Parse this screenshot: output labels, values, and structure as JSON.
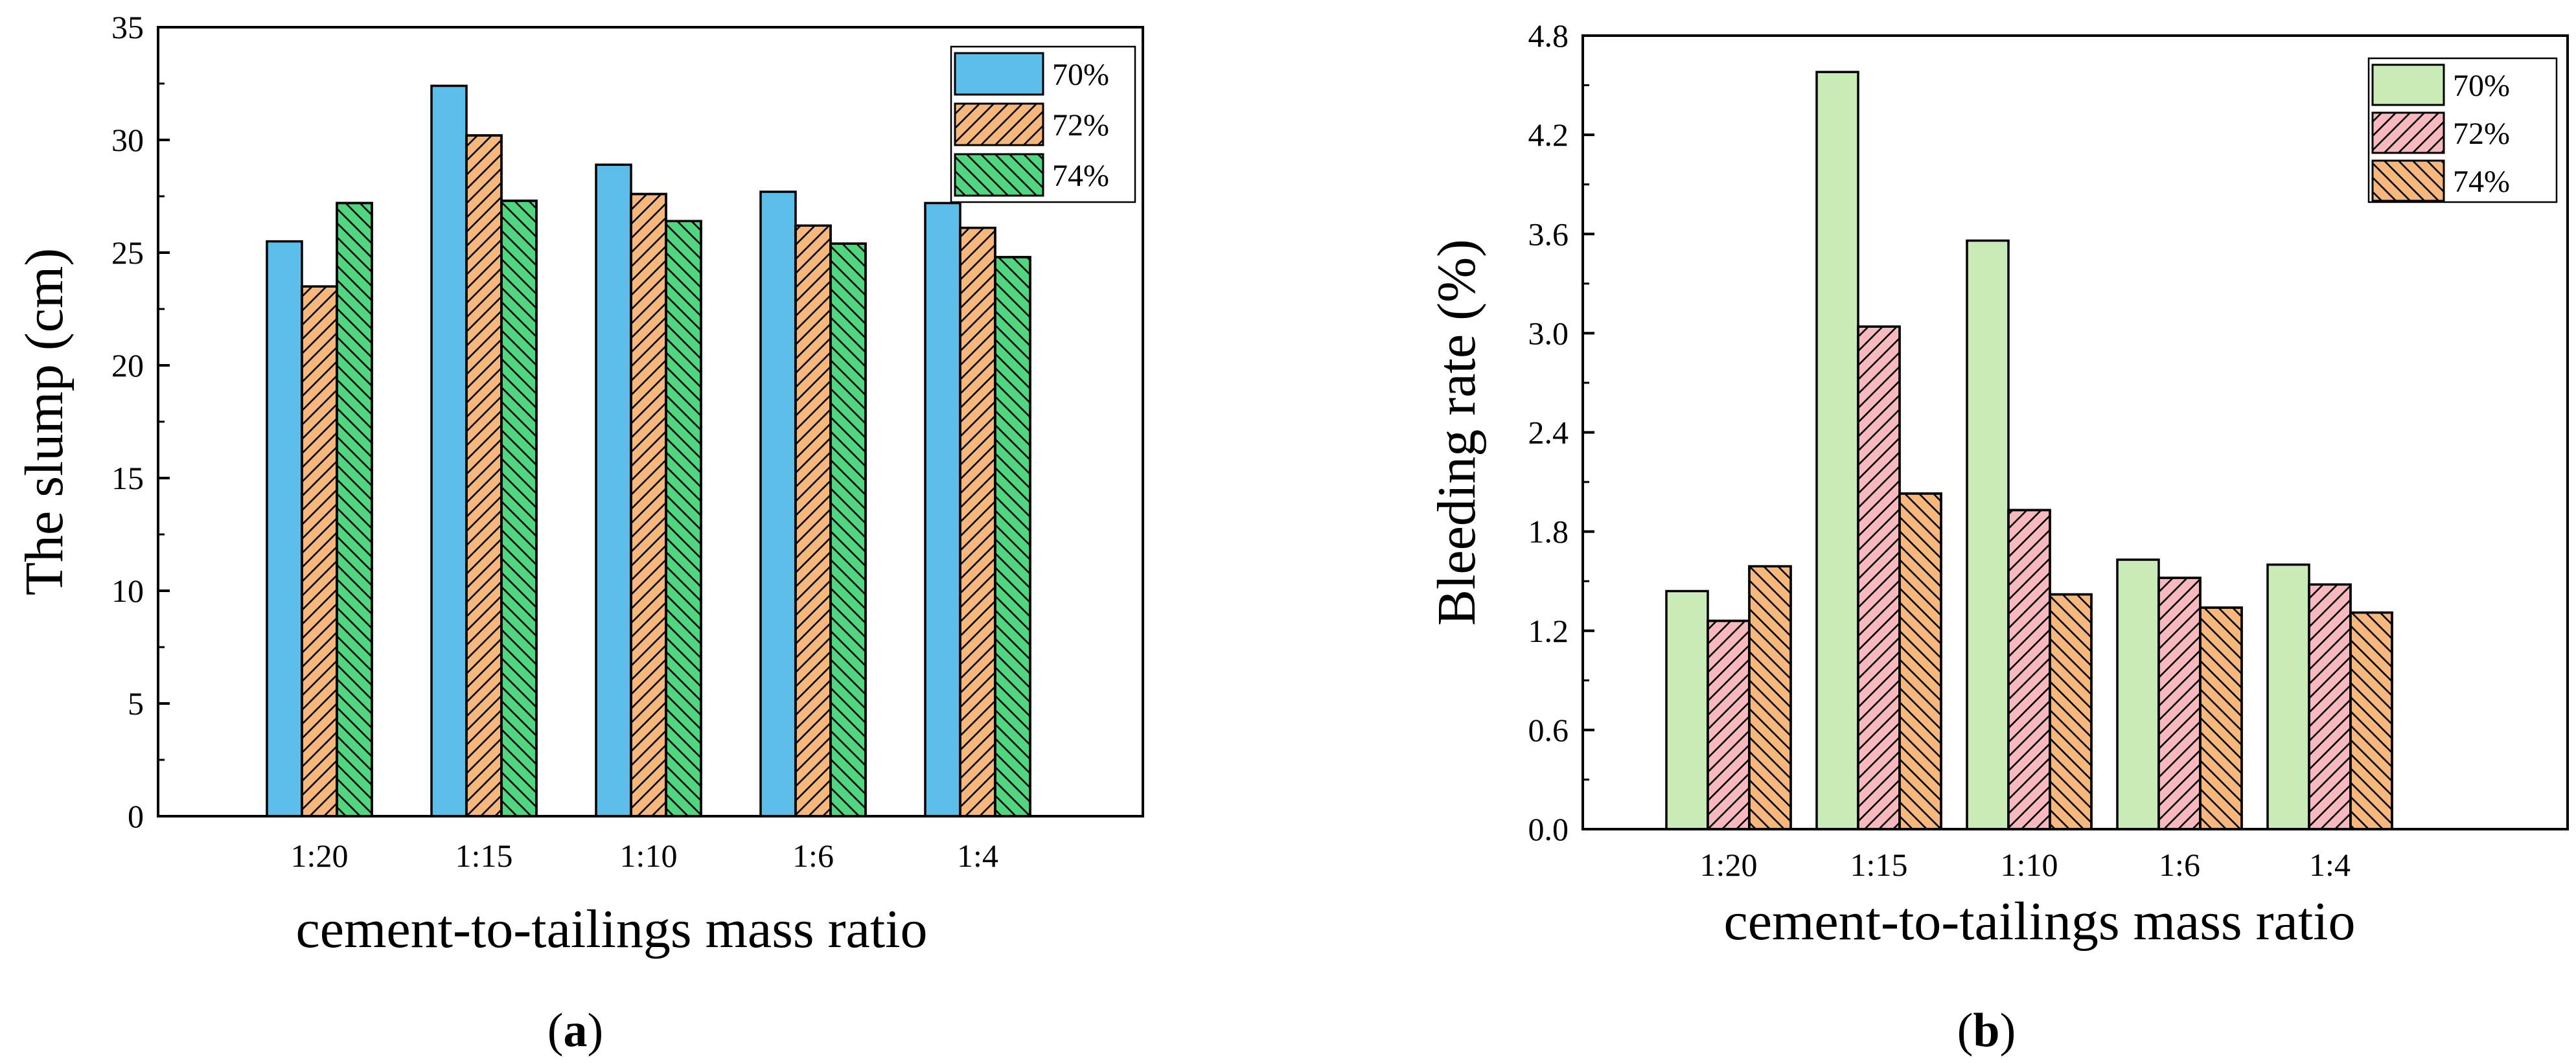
{
  "figure": {
    "panel_a_caption": "a",
    "panel_b_caption": "b"
  },
  "chart_data": [
    {
      "type": "bar",
      "panel": "(a)",
      "title": "",
      "xlabel": "cement-to-tailings mass ratio",
      "ylabel": "The slump (cm)",
      "ylim": [
        0,
        35
      ],
      "yticks": [
        0,
        5,
        10,
        15,
        20,
        25,
        30,
        35
      ],
      "categories": [
        "1:20",
        "1:15",
        "1:10",
        "1:6",
        "1:4"
      ],
      "legend_position": "top-right",
      "grid": false,
      "series": [
        {
          "name": "70%",
          "color": "#5bbde8",
          "hatch": "none",
          "values": [
            25.5,
            32.4,
            28.9,
            27.7,
            27.2
          ]
        },
        {
          "name": "72%",
          "color": "#f6b77c",
          "hatch": "forward",
          "values": [
            23.5,
            30.2,
            27.6,
            26.2,
            26.1
          ]
        },
        {
          "name": "74%",
          "color": "#4fd67f",
          "hatch": "backward",
          "values": [
            27.2,
            27.3,
            26.4,
            25.4,
            24.8
          ]
        }
      ]
    },
    {
      "type": "bar",
      "panel": "(b)",
      "title": "",
      "xlabel": "cement-to-tailings mass ratio",
      "ylabel": "Bleeding rate (%)",
      "ylim": [
        0,
        4.8
      ],
      "yticks": [
        "0.0",
        "0.6",
        "1.2",
        "1.8",
        "2.4",
        "3.0",
        "3.6",
        "4.2",
        "4.8"
      ],
      "categories": [
        "1:20",
        "1:15",
        "1:10",
        "1:6",
        "1:4"
      ],
      "legend_position": "top-right",
      "grid": false,
      "series": [
        {
          "name": "70%",
          "color": "#c8ebb8",
          "hatch": "none",
          "values": [
            1.44,
            4.58,
            3.56,
            1.63,
            1.6
          ]
        },
        {
          "name": "72%",
          "color": "#f7b9bd",
          "hatch": "forward",
          "values": [
            1.26,
            3.04,
            1.93,
            1.52,
            1.48
          ]
        },
        {
          "name": "74%",
          "color": "#f6b77c",
          "hatch": "backward",
          "values": [
            1.59,
            2.03,
            1.42,
            1.34,
            1.31
          ]
        }
      ]
    }
  ]
}
